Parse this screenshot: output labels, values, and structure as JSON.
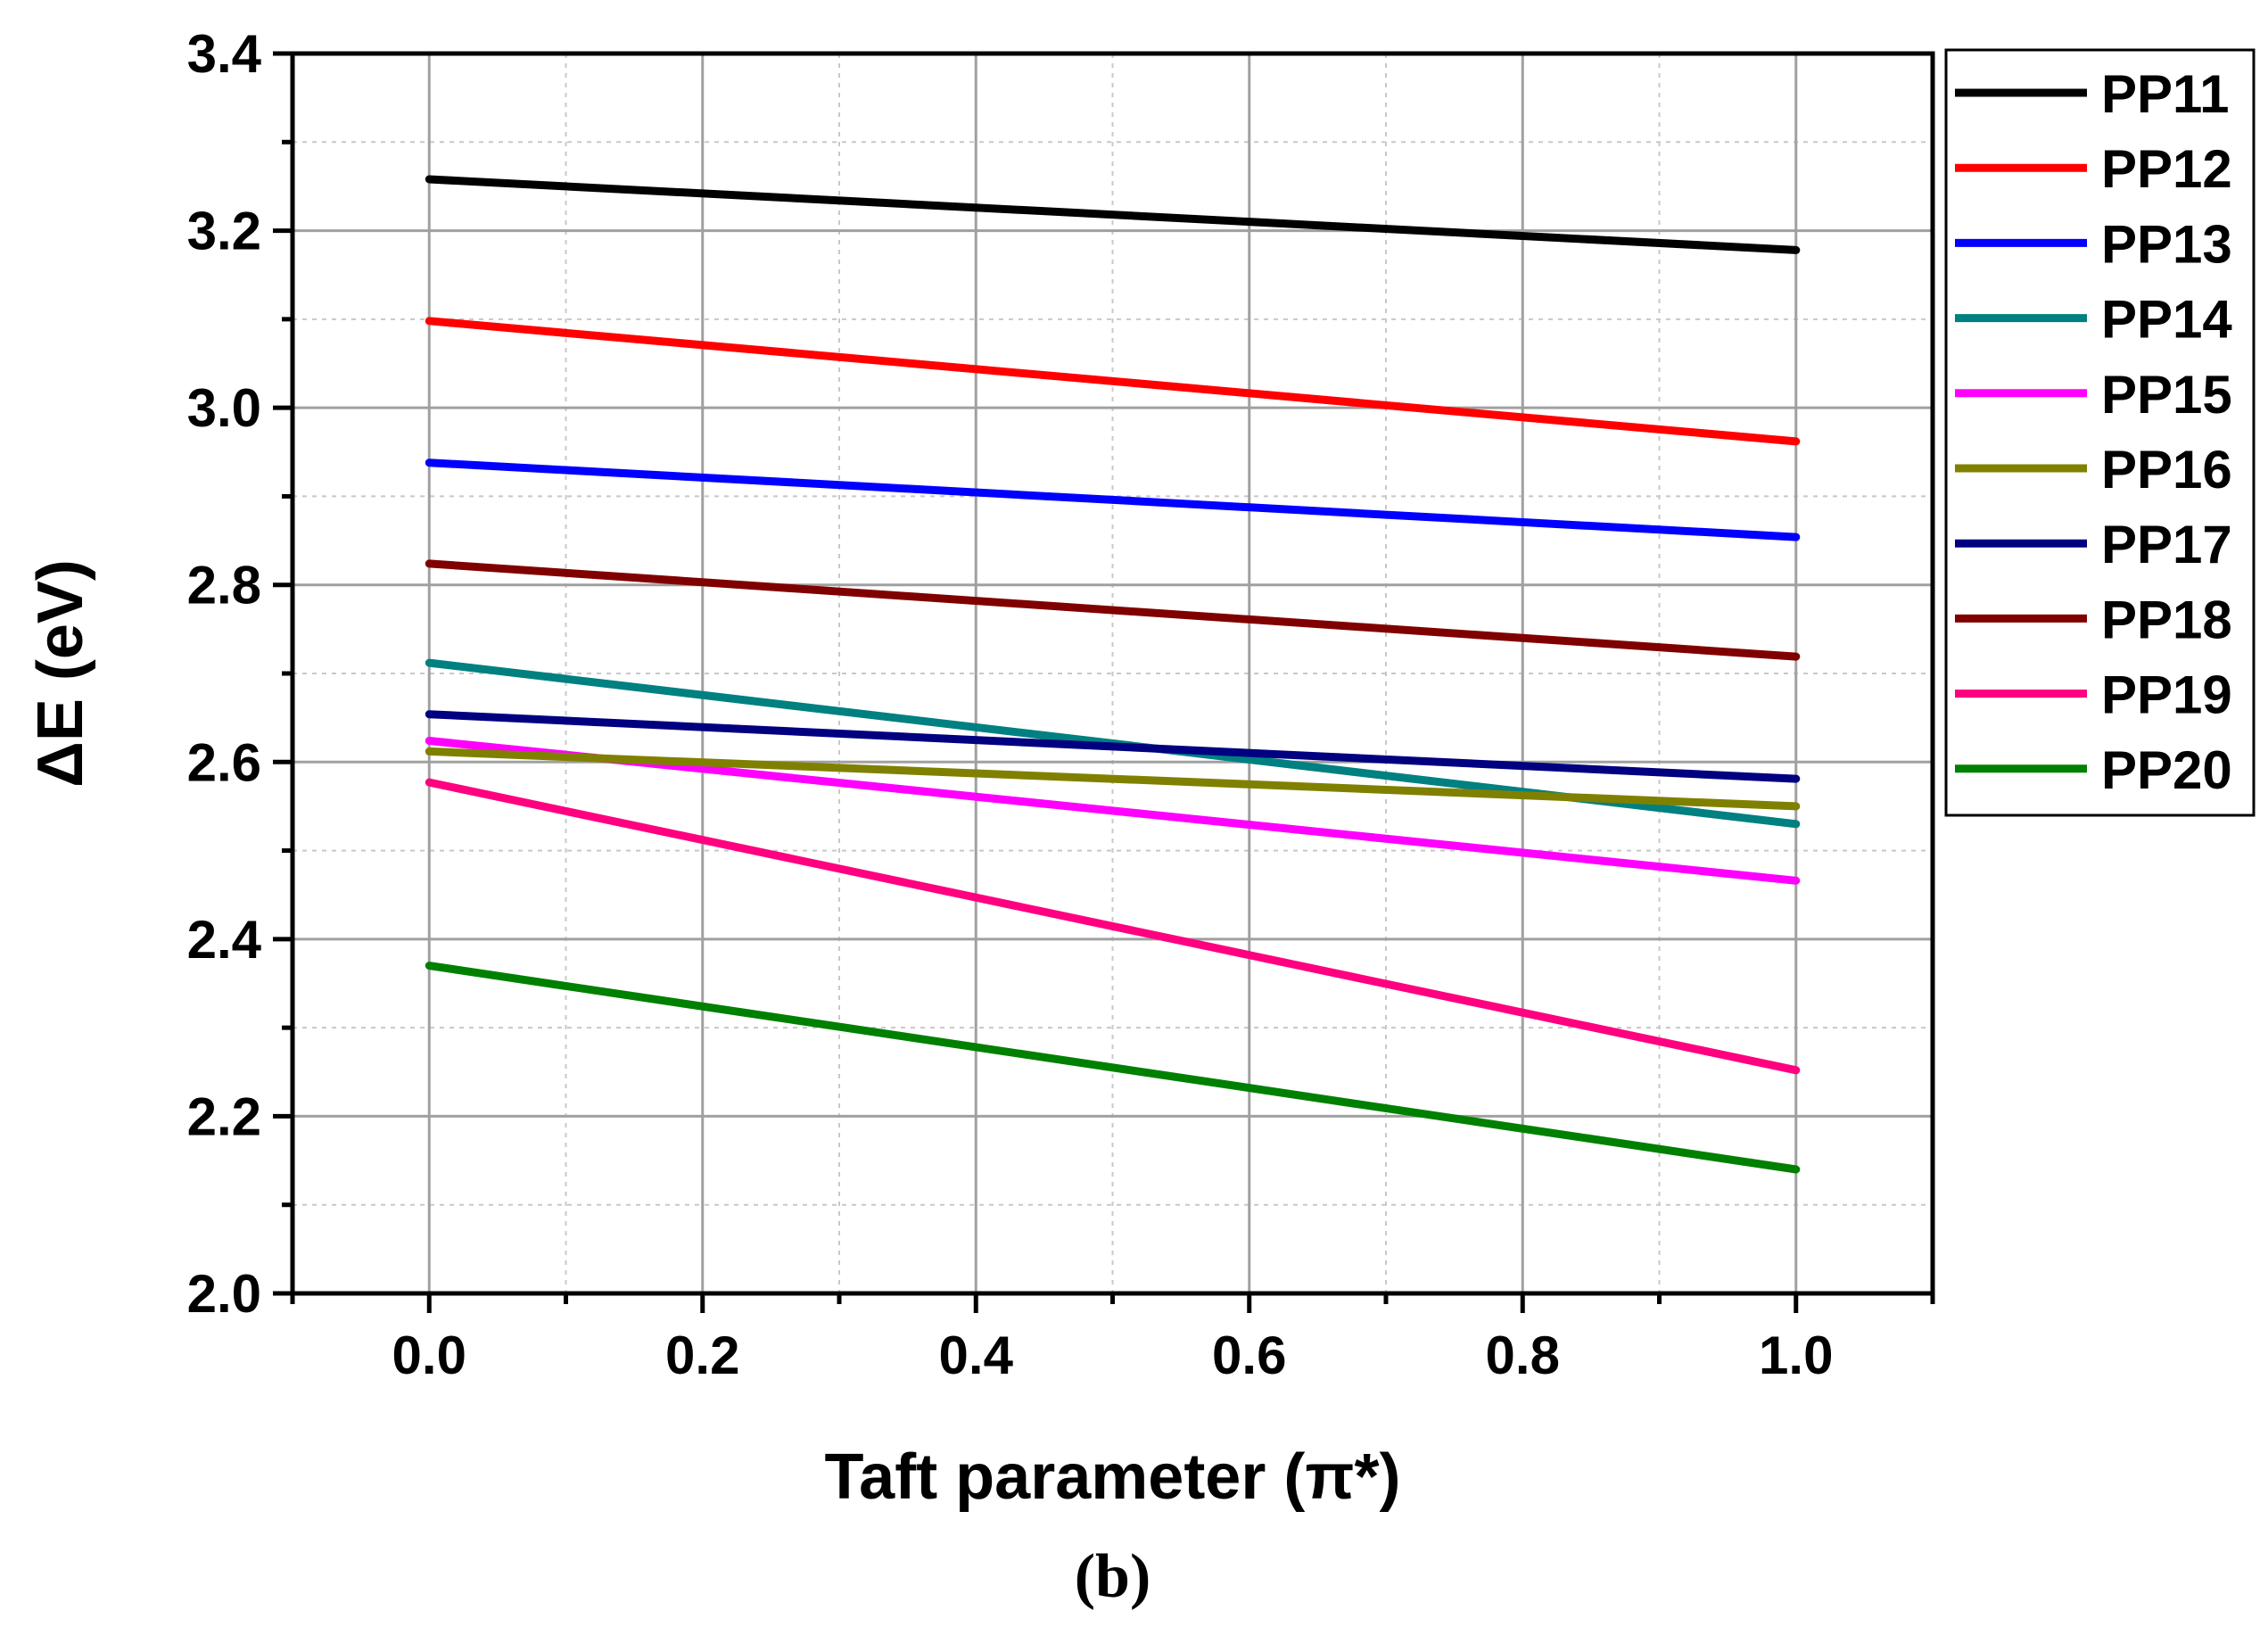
{
  "chart_data": {
    "type": "line",
    "title": "",
    "xlabel": "Taft parameter (π*)",
    "ylabel": "ΔE (eV)",
    "panel_label": "(b)",
    "xlim": [
      -0.1,
      1.1
    ],
    "ylim": [
      2.0,
      3.4
    ],
    "x_ticks": [
      0.0,
      0.2,
      0.4,
      0.6,
      0.8,
      1.0
    ],
    "x_tick_labels": [
      "0.0",
      "0.2",
      "0.4",
      "0.6",
      "0.8",
      "1.0"
    ],
    "y_ticks": [
      2.0,
      2.2,
      2.4,
      2.6,
      2.8,
      3.0,
      3.2,
      3.4
    ],
    "y_tick_labels": [
      "2.0",
      "2.2",
      "2.4",
      "2.6",
      "2.8",
      "3.0",
      "3.2",
      "3.4"
    ],
    "grid": true,
    "legend_position": "outside-right-top",
    "x": [
      0.0,
      1.0
    ],
    "series": [
      {
        "name": "PP11",
        "color": "#000000",
        "values": [
          3.258,
          3.178
        ]
      },
      {
        "name": "PP12",
        "color": "#ff0000",
        "values": [
          3.098,
          2.962
        ]
      },
      {
        "name": "PP13",
        "color": "#0000ff",
        "values": [
          2.938,
          2.854
        ]
      },
      {
        "name": "PP14",
        "color": "#008080",
        "values": [
          2.712,
          2.53
        ]
      },
      {
        "name": "PP15",
        "color": "#ff00ff",
        "values": [
          2.624,
          2.466
        ]
      },
      {
        "name": "PP16",
        "color": "#808000",
        "values": [
          2.612,
          2.55
        ]
      },
      {
        "name": "PP17",
        "color": "#000080",
        "values": [
          2.654,
          2.581
        ]
      },
      {
        "name": "PP18",
        "color": "#800000",
        "values": [
          2.824,
          2.719
        ]
      },
      {
        "name": "PP19",
        "color": "#ff0080",
        "values": [
          2.577,
          2.252
        ]
      },
      {
        "name": "PP20",
        "color": "#008000",
        "values": [
          2.37,
          2.14
        ]
      }
    ]
  }
}
